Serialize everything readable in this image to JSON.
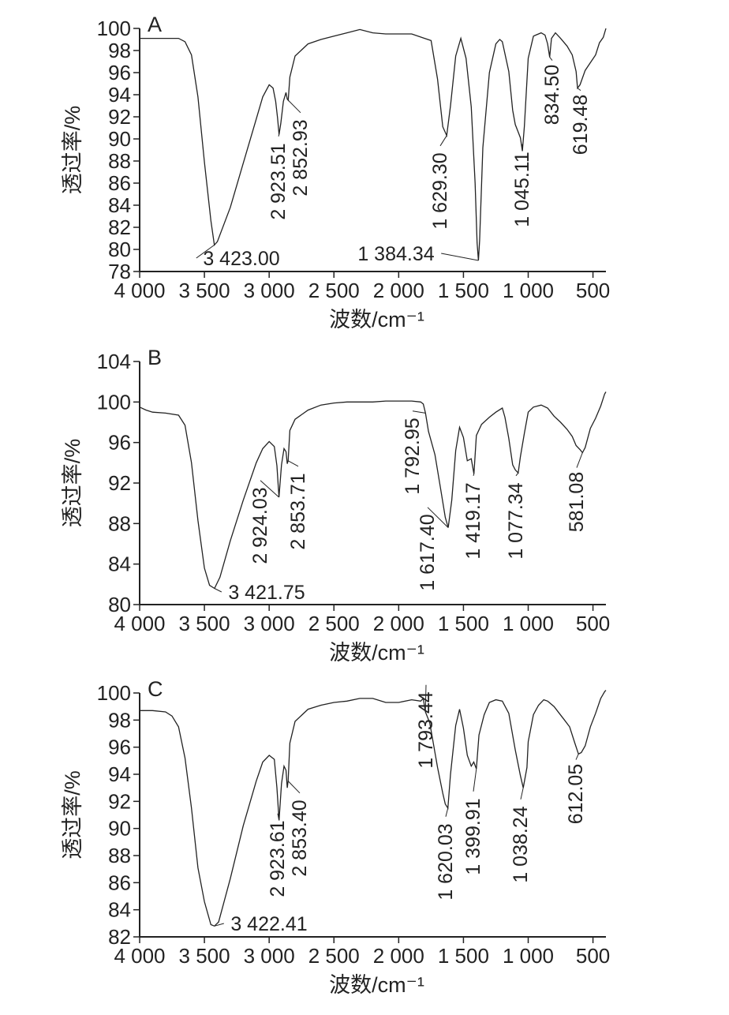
{
  "chart_data": [
    {
      "type": "line",
      "panel": "A",
      "xlabel": "波数/cm⁻¹",
      "ylabel": "透过率/%",
      "xlim": [
        4000,
        400
      ],
      "ylim": [
        78,
        100
      ],
      "xticks": [
        4000,
        3500,
        3000,
        2500,
        2000,
        1500,
        1000,
        500
      ],
      "xtick_labels": [
        "4 000",
        "3 500",
        "3 000",
        "2 500",
        "2 000",
        "1 500",
        "1 000",
        "500"
      ],
      "yticks": [
        78,
        80,
        82,
        84,
        86,
        88,
        90,
        92,
        94,
        96,
        98,
        100
      ],
      "ytick_labels": [
        "78",
        "80",
        "82",
        "84",
        "86",
        "88",
        "90",
        "92",
        "94",
        "96",
        "98",
        "100"
      ],
      "series": [
        {
          "x": [
            4000,
            3900,
            3800,
            3700,
            3650,
            3600,
            3550,
            3500,
            3450,
            3423,
            3400,
            3300,
            3200,
            3100,
            3050,
            3000,
            2970,
            2950,
            2935,
            2923.51,
            2910,
            2890,
            2870,
            2860,
            2852.93,
            2840,
            2800,
            2700,
            2600,
            2500,
            2400,
            2300,
            2200,
            2100,
            2000,
            1900,
            1800,
            1750,
            1700,
            1660,
            1629.3,
            1600,
            1560,
            1520,
            1480,
            1440,
            1410,
            1395,
            1384.34,
            1375,
            1350,
            1300,
            1250,
            1220,
            1200,
            1150,
            1120,
            1100,
            1080,
            1060,
            1045.11,
            1030,
            1000,
            960,
            940,
            900,
            870,
            850,
            834.5,
            820,
            790,
            750,
            700,
            660,
            630,
            619.48,
            600,
            560,
            520,
            480,
            450,
            420,
            400
          ],
          "y": [
            99.1,
            99.1,
            99.1,
            99.1,
            98.8,
            97.6,
            93.8,
            87.9,
            82.6,
            80.4,
            80.7,
            83.8,
            87.8,
            91.8,
            93.8,
            94.9,
            94.6,
            93.4,
            91.9,
            90.4,
            91.4,
            93.4,
            94.2,
            93.6,
            93.5,
            95.6,
            97.5,
            98.6,
            99.0,
            99.3,
            99.6,
            99.9,
            99.6,
            99.5,
            99.5,
            99.5,
            99.1,
            98.9,
            95.4,
            91.1,
            90.3,
            93.0,
            97.5,
            99.1,
            97.3,
            92.9,
            86.0,
            80.6,
            79.0,
            80.8,
            89.2,
            96.0,
            98.6,
            99.0,
            98.8,
            96.1,
            92.6,
            91.3,
            90.7,
            90.1,
            88.9,
            91.1,
            97.3,
            99.3,
            99.4,
            99.6,
            99.4,
            98.6,
            97.4,
            99.1,
            99.6,
            99.1,
            98.4,
            97.6,
            96.1,
            94.6,
            94.9,
            96.2,
            96.9,
            97.6,
            98.7,
            99.2,
            100.0
          ]
        }
      ],
      "annotations": [
        {
          "label": "3 423.00",
          "x": 3423.0
        },
        {
          "label": "2 923.51",
          "x": 2923.51
        },
        {
          "label": "2 852.93",
          "x": 2852.93
        },
        {
          "label": "1 629.30",
          "x": 1629.3
        },
        {
          "label": "1 384.34",
          "x": 1384.34
        },
        {
          "label": "1 045.11",
          "x": 1045.11
        },
        {
          "label": "834.50",
          "x": 834.5
        },
        {
          "label": "619.48",
          "x": 619.48
        }
      ]
    },
    {
      "type": "line",
      "panel": "B",
      "xlabel": "波数/cm⁻¹",
      "ylabel": "透过率/%",
      "xlim": [
        4000,
        400
      ],
      "ylim": [
        80,
        104
      ],
      "xticks": [
        4000,
        3500,
        3000,
        2500,
        2000,
        1500,
        1000,
        500
      ],
      "xtick_labels": [
        "4 000",
        "3 500",
        "3 000",
        "2 500",
        "2 000",
        "1 500",
        "1 000",
        "500"
      ],
      "yticks": [
        80,
        84,
        88,
        92,
        96,
        100,
        104
      ],
      "ytick_labels": [
        "80",
        "84",
        "88",
        "92",
        "96",
        "100",
        "104"
      ],
      "series": [
        {
          "x": [
            4000,
            3950,
            3900,
            3800,
            3700,
            3650,
            3600,
            3550,
            3500,
            3460,
            3421.75,
            3380,
            3300,
            3200,
            3100,
            3050,
            3000,
            2960,
            2940,
            2924.03,
            2905,
            2885,
            2870,
            2860,
            2853.71,
            2840,
            2800,
            2700,
            2600,
            2500,
            2400,
            2300,
            2200,
            2100,
            2000,
            1900,
            1830,
            1810,
            1792.95,
            1770,
            1720,
            1680,
            1640,
            1617.4,
            1590,
            1560,
            1530,
            1500,
            1470,
            1440,
            1419.17,
            1400,
            1360,
            1300,
            1250,
            1200,
            1180,
            1150,
            1120,
            1100,
            1077.34,
            1060,
            1030,
            1000,
            960,
            900,
            850,
            800,
            750,
            700,
            660,
            630,
            600,
            581.08,
            560,
            520,
            480,
            440,
            410,
            400
          ],
          "y": [
            99.5,
            99.2,
            99.0,
            98.9,
            98.7,
            97.7,
            94.0,
            88.3,
            83.6,
            81.9,
            81.6,
            82.7,
            86.3,
            90.3,
            94.0,
            95.4,
            96.1,
            95.6,
            93.7,
            90.6,
            93.8,
            95.4,
            95.1,
            93.9,
            94.2,
            97.2,
            98.3,
            99.2,
            99.7,
            99.9,
            100.0,
            100.0,
            100.0,
            100.1,
            100.1,
            100.1,
            100.0,
            99.8,
            98.9,
            97.1,
            94.8,
            91.7,
            88.6,
            87.6,
            90.3,
            95.2,
            97.5,
            96.5,
            94.2,
            94.4,
            92.9,
            96.7,
            97.8,
            98.5,
            99.0,
            99.4,
            98.5,
            96.4,
            93.8,
            93.3,
            93.0,
            94.6,
            96.9,
            99.0,
            99.5,
            99.7,
            99.4,
            98.6,
            98.0,
            97.3,
            96.6,
            95.7,
            95.3,
            95.0,
            95.5,
            97.4,
            98.4,
            99.6,
            100.8,
            101.0
          ]
        }
      ],
      "annotations": [
        {
          "label": "3 421.75",
          "x": 3421.75
        },
        {
          "label": "2 924.03",
          "x": 2924.03
        },
        {
          "label": "2 853.71",
          "x": 2853.71
        },
        {
          "label": "1 792.95",
          "x": 1792.95
        },
        {
          "label": "1 617.40",
          "x": 1617.4
        },
        {
          "label": "1 419.17",
          "x": 1419.17
        },
        {
          "label": "1 077.34",
          "x": 1077.34
        },
        {
          "label": "581.08",
          "x": 581.08
        }
      ]
    },
    {
      "type": "line",
      "panel": "C",
      "xlabel": "波数/cm⁻¹",
      "ylabel": "透过率/%",
      "xlim": [
        4000,
        400
      ],
      "ylim": [
        82,
        100
      ],
      "xticks": [
        4000,
        3500,
        3000,
        2500,
        2000,
        1500,
        1000,
        500
      ],
      "xtick_labels": [
        "4 000",
        "3 500",
        "3 000",
        "2 500",
        "2 000",
        "1 500",
        "1 000",
        "500"
      ],
      "yticks": [
        82,
        84,
        86,
        88,
        90,
        92,
        94,
        96,
        98,
        100
      ],
      "ytick_labels": [
        "82",
        "84",
        "86",
        "88",
        "90",
        "92",
        "94",
        "96",
        "98",
        "100"
      ],
      "series": [
        {
          "x": [
            4000,
            3900,
            3800,
            3750,
            3700,
            3650,
            3600,
            3550,
            3500,
            3450,
            3422.41,
            3390,
            3300,
            3200,
            3100,
            3050,
            3000,
            2960,
            2940,
            2923.61,
            2905,
            2885,
            2870,
            2860,
            2853.4,
            2840,
            2800,
            2700,
            2600,
            2500,
            2400,
            2300,
            2200,
            2100,
            2000,
            1900,
            1830,
            1810,
            1793.44,
            1760,
            1700,
            1660,
            1640,
            1620.03,
            1600,
            1560,
            1530,
            1500,
            1470,
            1440,
            1420,
            1399.91,
            1380,
            1340,
            1300,
            1250,
            1200,
            1150,
            1100,
            1060,
            1038.24,
            1010,
            1000,
            960,
            920,
            880,
            850,
            800,
            760,
            720,
            680,
            640,
            612.05,
            590,
            560,
            520,
            480,
            440,
            410,
            400
          ],
          "y": [
            98.7,
            98.7,
            98.6,
            98.3,
            97.5,
            95.2,
            91.5,
            87.1,
            84.6,
            82.9,
            82.8,
            83.1,
            86.3,
            90.2,
            93.5,
            94.9,
            95.4,
            95.1,
            93.0,
            90.6,
            93.3,
            94.6,
            94.3,
            93.0,
            93.5,
            96.3,
            97.9,
            98.8,
            99.1,
            99.3,
            99.4,
            99.6,
            99.6,
            99.3,
            99.3,
            99.5,
            99.4,
            99.6,
            98.6,
            97.8,
            94.5,
            92.6,
            91.8,
            91.5,
            94.0,
            97.6,
            98.8,
            97.4,
            95.4,
            94.6,
            94.9,
            94.4,
            96.9,
            98.4,
            99.3,
            99.5,
            99.4,
            98.5,
            95.8,
            93.9,
            93.0,
            94.5,
            96.4,
            98.4,
            99.1,
            99.5,
            99.4,
            99.0,
            98.5,
            98.0,
            97.5,
            96.3,
            95.5,
            95.6,
            96.1,
            97.5,
            98.5,
            99.6,
            100.1,
            100.2
          ]
        }
      ],
      "annotations": [
        {
          "label": "3 422.41",
          "x": 3422.41
        },
        {
          "label": "2 923.61",
          "x": 2923.61
        },
        {
          "label": "2 853.40",
          "x": 2853.4
        },
        {
          "label": "1 793.44",
          "x": 1793.44
        },
        {
          "label": "1 620.03",
          "x": 1620.03
        },
        {
          "label": "1 399.91",
          "x": 1399.91
        },
        {
          "label": "1 038.24",
          "x": 1038.24
        },
        {
          "label": "612.05",
          "x": 612.05
        }
      ]
    }
  ]
}
